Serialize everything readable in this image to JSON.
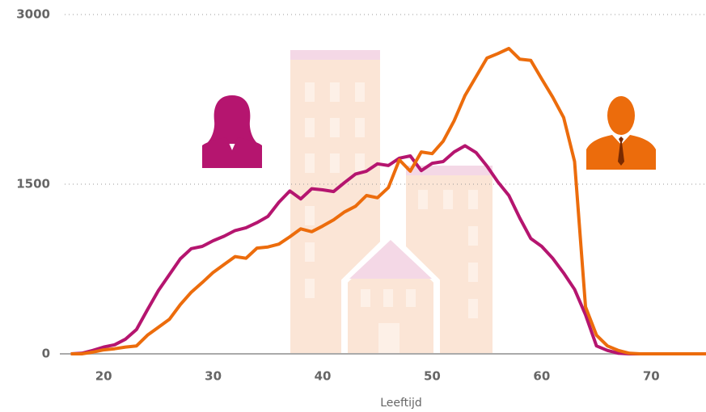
{
  "chart_data": {
    "type": "line",
    "x_label": "Leeftijd",
    "x": [
      17,
      18,
      19,
      20,
      21,
      22,
      23,
      24,
      25,
      26,
      27,
      28,
      29,
      30,
      31,
      32,
      33,
      34,
      35,
      36,
      37,
      38,
      39,
      40,
      41,
      42,
      43,
      44,
      45,
      46,
      47,
      48,
      49,
      50,
      51,
      52,
      53,
      54,
      55,
      56,
      57,
      58,
      59,
      60,
      61,
      62,
      63,
      64,
      65,
      66,
      67,
      68,
      69,
      70,
      71,
      72,
      73,
      74,
      75
    ],
    "series": [
      {
        "color": "#b5156f",
        "values": [
          0,
          5,
          30,
          60,
          80,
          130,
          215,
          390,
          560,
          700,
          840,
          930,
          950,
          1000,
          1040,
          1090,
          1115,
          1160,
          1215,
          1340,
          1440,
          1370,
          1460,
          1450,
          1435,
          1515,
          1590,
          1615,
          1680,
          1665,
          1730,
          1750,
          1620,
          1685,
          1700,
          1785,
          1840,
          1780,
          1660,
          1520,
          1400,
          1200,
          1020,
          950,
          845,
          715,
          570,
          345,
          70,
          30,
          5,
          0,
          0,
          0,
          0,
          0,
          0,
          0,
          0
        ]
      },
      {
        "color": "#ec6c0c",
        "values": [
          0,
          0,
          15,
          35,
          45,
          60,
          70,
          165,
          235,
          305,
          435,
          545,
          630,
          720,
          790,
          860,
          845,
          935,
          945,
          970,
          1035,
          1105,
          1080,
          1130,
          1185,
          1255,
          1305,
          1400,
          1380,
          1470,
          1715,
          1615,
          1785,
          1770,
          1880,
          2060,
          2285,
          2450,
          2615,
          2655,
          2700,
          2605,
          2595,
          2430,
          2270,
          2090,
          1700,
          415,
          165,
          70,
          30,
          5,
          0,
          0,
          0,
          0,
          0,
          0,
          0
        ]
      }
    ],
    "xlim": [
      16,
      75
    ],
    "ylim": [
      0,
      3000
    ],
    "xticks": [
      20,
      30,
      40,
      50,
      60,
      70
    ],
    "yticks": [
      0,
      1500,
      3000
    ],
    "grid": true
  }
}
